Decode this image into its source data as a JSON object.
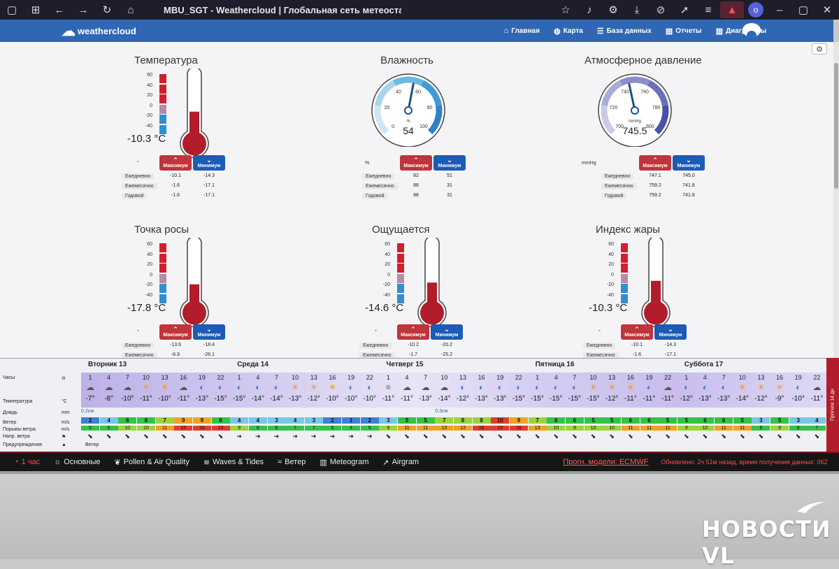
{
  "browser": {
    "title": "MBU_SGT - Weathercloud | Глобальная сеть метеоста"
  },
  "nav": {
    "logo": "weathercloud",
    "links": [
      {
        "icon": "home-icon",
        "label": "Главная"
      },
      {
        "icon": "globe-icon",
        "label": "Карта"
      },
      {
        "icon": "database-icon",
        "label": "База данных"
      },
      {
        "icon": "report-icon",
        "label": "Отчеты"
      },
      {
        "icon": "chart-icon",
        "label": "Диаграммы"
      }
    ]
  },
  "panels": [
    {
      "title": "Температура",
      "type": "thermo",
      "unit": "°",
      "big": "-10.3 °C",
      "fill": 0.36,
      "scale": [
        "60",
        "40",
        "20",
        "0",
        "-20",
        "-40"
      ],
      "max_label": "Максимум",
      "min_label": "Минимум",
      "rows": [
        {
          "label": "Ежедневно",
          "max": "-10.1",
          "min": "-14.3"
        },
        {
          "label": "Ежемесячно",
          "max": "-1.6",
          "min": "-17.1"
        },
        {
          "label": "Годовой",
          "max": "-1.6",
          "min": "-17.1"
        }
      ]
    },
    {
      "title": "Влажность",
      "type": "gauge",
      "unit": "%",
      "big": "54",
      "gunit": "%",
      "value": 54,
      "gmin": 0,
      "gmax": 100,
      "ticks": [
        "0",
        "20",
        "40",
        "60",
        "80",
        "100"
      ],
      "max_label": "Максимум",
      "min_label": "Минимум",
      "rows": [
        {
          "label": "Ежедневно",
          "max": "82",
          "min": "51"
        },
        {
          "label": "Ежемесячно",
          "max": "88",
          "min": "31"
        },
        {
          "label": "Годовой",
          "max": "88",
          "min": "31"
        }
      ]
    },
    {
      "title": "Атмосферное давление",
      "type": "gauge",
      "unit": "mmHg",
      "big": "745.5",
      "gunit": "mmHg",
      "value": 745.5,
      "gmin": 700,
      "gmax": 800,
      "ticks": [
        "700",
        "720",
        "740",
        "760",
        "780",
        "800"
      ],
      "max_label": "Максимум",
      "min_label": "Минимум",
      "rows": [
        {
          "label": "Ежедневно",
          "max": "747.1",
          "min": "745.0"
        },
        {
          "label": "Ежемесячно",
          "max": "759.2",
          "min": "741.8"
        },
        {
          "label": "Годовой",
          "max": "759.2",
          "min": "741.8"
        }
      ]
    },
    {
      "title": "Точка росы",
      "type": "thermo",
      "unit": "°",
      "big": "-17.8 °C",
      "fill": 0.3,
      "scale": [
        "60",
        "40",
        "20",
        "0",
        "-20",
        "-40"
      ],
      "max_label": "Максимум",
      "min_label": "Минимум",
      "rows": [
        {
          "label": "Ежедневно",
          "max": "-13.6",
          "min": "-18.4"
        },
        {
          "label": "Ежемесячно",
          "max": "-6.9",
          "min": "-26.1"
        }
      ]
    },
    {
      "title": "Ощущается",
      "type": "thermo",
      "unit": "°",
      "big": "-14.6 °C",
      "fill": 0.33,
      "scale": [
        "60",
        "40",
        "20",
        "0",
        "-20",
        "-40"
      ],
      "max_label": "Максимум",
      "min_label": "Минимум",
      "rows": [
        {
          "label": "Ежедневно",
          "max": "-10.2",
          "min": "-20.2"
        },
        {
          "label": "Ежемесячно",
          "max": "-1.7",
          "min": "-25.2"
        }
      ]
    },
    {
      "title": "Индекс жары",
      "type": "thermo",
      "unit": "°",
      "big": "-10.3 °C",
      "fill": 0.36,
      "scale": [
        "60",
        "40",
        "20",
        "0",
        "-20",
        "-40"
      ],
      "max_label": "Максимум",
      "min_label": "Минимум",
      "rows": [
        {
          "label": "Ежедневно",
          "max": "-10.1",
          "min": "-14.3"
        },
        {
          "label": "Ежемесячно",
          "max": "-1.6",
          "min": "-17.1"
        }
      ]
    }
  ],
  "forecast": {
    "row_labels": [
      {
        "label": "Часы",
        "unit": "⊖"
      },
      {
        "label": "Температура",
        "unit": "°C"
      },
      {
        "label": "Дождь",
        "unit": "mm"
      },
      {
        "label": "Ветер",
        "unit": "m/s"
      },
      {
        "label": "Порывы ветра",
        "unit": "m/s"
      },
      {
        "label": "Напр. ветра",
        "unit": "⚑"
      },
      {
        "label": "Предупреждения",
        "unit": "▲"
      }
    ],
    "days": [
      "Вторник 13",
      "Среда 14",
      "Четверг 15",
      "Пятница 16",
      "Суббота 17"
    ],
    "hours": [
      "1",
      "4",
      "7",
      "10",
      "13",
      "16",
      "19",
      "22",
      "1",
      "4",
      "7",
      "10",
      "13",
      "16",
      "19",
      "22",
      "1",
      "4",
      "7",
      "10",
      "13",
      "16",
      "19",
      "22",
      "1",
      "4",
      "7",
      "10",
      "13",
      "16",
      "19",
      "22",
      "1",
      "4",
      "7",
      "10",
      "13",
      "16",
      "19",
      "22"
    ],
    "temps": [
      "-7°",
      "-8°",
      "-10°",
      "-11°",
      "-10°",
      "-11°",
      "-13°",
      "-15°",
      "-15°",
      "-14°",
      "-14°",
      "-13°",
      "-12°",
      "-10°",
      "-10°",
      "-10°",
      "-11°",
      "-11°",
      "-13°",
      "-14°",
      "-12°",
      "-13°",
      "-13°",
      "-15°",
      "-15°",
      "-15°",
      "-15°",
      "-15°",
      "-12°",
      "-11°",
      "-11°",
      "-11°",
      "-12°",
      "-13°",
      "-13°",
      "-14°",
      "-12°",
      "-9°",
      "-10°",
      "-11°"
    ],
    "icons": [
      "cloud-night",
      "cloud",
      "cloud",
      "sun",
      "sun",
      "cloud",
      "moon",
      "moon",
      "moon",
      "moon",
      "moon",
      "sun",
      "sun",
      "sun",
      "moon",
      "moon",
      "fog",
      "cloud",
      "cloud",
      "cloud",
      "moon",
      "moon",
      "moon",
      "moon",
      "moon",
      "moon",
      "moon",
      "sun",
      "sun",
      "sun",
      "moon",
      "cloud",
      "moon",
      "moon",
      "moon",
      "sun",
      "sun",
      "sun",
      "moon",
      "cloud"
    ],
    "rain": [
      {
        "i": 0,
        "label": "0.2см"
      },
      {
        "i": 19,
        "label": "0.3см"
      }
    ],
    "wind": [
      "2",
      "4",
      "6",
      "6",
      "7",
      "9",
      "9",
      "6",
      "4",
      "4",
      "3",
      "4",
      "3",
      "2",
      "1",
      "2",
      "3",
      "5",
      "5",
      "7",
      "8",
      "8",
      "10",
      "9",
      "7",
      "6",
      "6",
      "5",
      "5",
      "6",
      "6",
      "5",
      "5",
      "6",
      "6",
      "5",
      "3",
      "5",
      "3",
      "4"
    ],
    "gusts": [
      "5",
      "6",
      "10",
      "10",
      "11",
      "15",
      "16",
      "15",
      "9",
      "8",
      "8",
      "7",
      "7",
      "5",
      "4",
      "5",
      "9",
      "11",
      "11",
      "13",
      "13",
      "16",
      "19",
      "16",
      "13",
      "10",
      "9",
      "10",
      "10",
      "11",
      "11",
      "11",
      "9",
      "10",
      "11",
      "11",
      "8",
      "9",
      "8",
      "7"
    ],
    "warning": "Ветер",
    "colors": {
      "calm": "#3f7fd6",
      "light": "#79c7e8",
      "mod": "#33c447",
      "fresh": "#9bd53a",
      "strong": "#f0a321",
      "gale": "#e43c2b"
    }
  },
  "side_strip": "Прогноз 14 дн",
  "footer": {
    "items": [
      {
        "icon": "clock-icon",
        "label": "1 час"
      },
      {
        "icon": "sun-icon",
        "label": "Основные"
      },
      {
        "icon": "leaf-icon",
        "label": "Pollen & Air Quality"
      },
      {
        "icon": "wave-icon",
        "label": "Waves & Tides"
      },
      {
        "icon": "wind-icon",
        "label": "Ветер"
      },
      {
        "icon": "chart-icon",
        "label": "Meteogram"
      },
      {
        "icon": "map-icon",
        "label": "Airgram"
      }
    ],
    "model": "Прогн. модели: ECMWF",
    "updated": "Обновлено: 2ч 51м назад, время получения данных: 06Z"
  },
  "watermark": "НОВОСТИ VL"
}
